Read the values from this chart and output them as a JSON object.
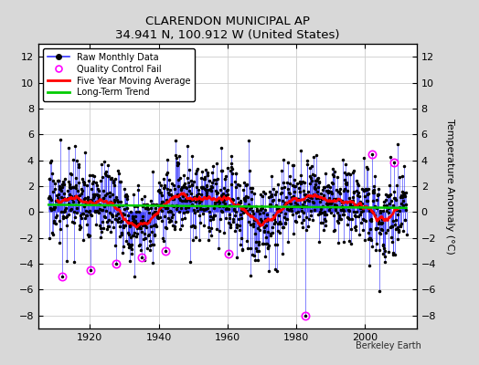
{
  "title": "CLARENDON MUNICIPAL AP",
  "subtitle": "34.941 N, 100.912 W (United States)",
  "ylabel": "Temperature Anomaly (°C)",
  "watermark": "Berkeley Earth",
  "xlim": [
    1905,
    2015
  ],
  "ylim": [
    -9,
    13
  ],
  "yticks": [
    -8,
    -6,
    -4,
    -2,
    0,
    2,
    4,
    6,
    8,
    10,
    12
  ],
  "xticks": [
    1920,
    1940,
    1960,
    1980,
    2000
  ],
  "fig_bg_color": "#d8d8d8",
  "plot_bg_color": "#ffffff",
  "raw_line_color": "#3333ff",
  "raw_marker_color": "#000000",
  "qc_color": "#ff00ff",
  "moving_avg_color": "#ff0000",
  "trend_color": "#00cc00",
  "grid_color": "#cccccc",
  "legend_loc": "upper left",
  "start_year": 1908,
  "end_year": 2012,
  "seed": 17
}
